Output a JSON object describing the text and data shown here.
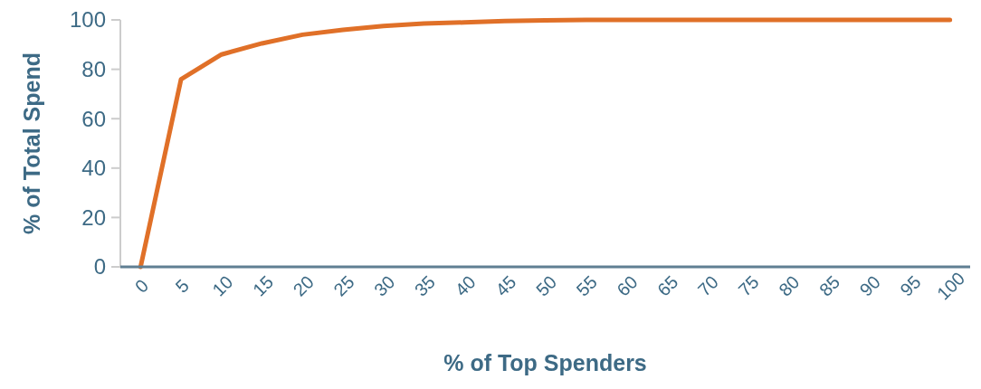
{
  "chart_data": {
    "type": "line",
    "xlabel": "% of Top Spenders",
    "ylabel": "% of Total Spend",
    "categories": [
      "0",
      "5",
      "10",
      "15",
      "20",
      "25",
      "30",
      "35",
      "40",
      "45",
      "50",
      "55",
      "60",
      "65",
      "70",
      "75",
      "80",
      "85",
      "90",
      "95",
      "100"
    ],
    "series": [
      {
        "color": "#e07028",
        "values": [
          0,
          76,
          86,
          90.5,
          94,
          96,
          97.5,
          98.5,
          99,
          99.5,
          99.8,
          100,
          100,
          100,
          100,
          100,
          100,
          100,
          100,
          100,
          100
        ]
      }
    ],
    "ylim": [
      0,
      100
    ],
    "yticks": [
      0,
      20,
      40,
      60,
      80,
      100
    ],
    "grid": false,
    "marker": "none",
    "line_style": "solid"
  }
}
